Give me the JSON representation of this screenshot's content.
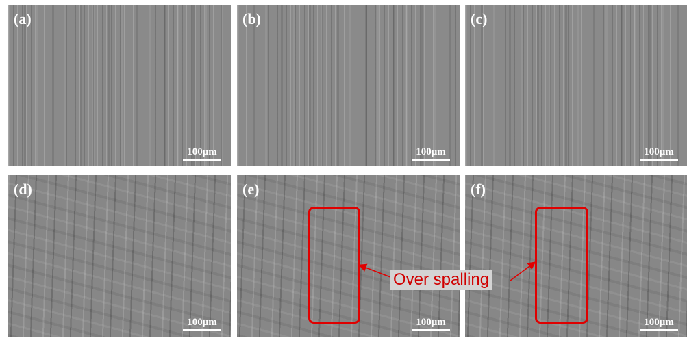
{
  "panels": [
    {
      "label": "(a)",
      "scale_bar": "100μm"
    },
    {
      "label": "(b)",
      "scale_bar": "100μm"
    },
    {
      "label": "(c)",
      "scale_bar": "100μm"
    },
    {
      "label": "(d)",
      "scale_bar": "100μm"
    },
    {
      "label": "(e)",
      "scale_bar": "100μm"
    },
    {
      "label": "(f)",
      "scale_bar": "100μm"
    }
  ],
  "annotation": "Over spalling"
}
